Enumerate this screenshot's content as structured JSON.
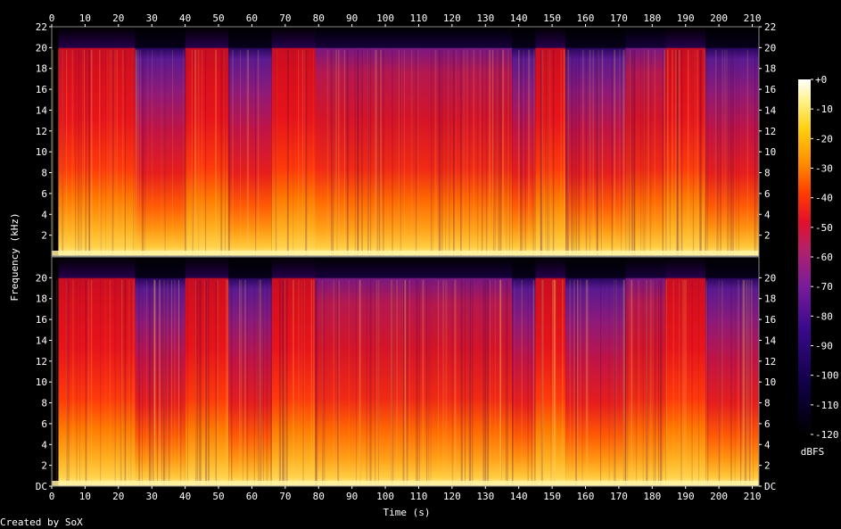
{
  "chart_data": {
    "type": "heatmap",
    "subtype": "spectrogram",
    "channels": 2,
    "xlabel": "Time (s)",
    "ylabel": "Frequency (kHz)",
    "xlim": [
      0,
      212
    ],
    "ylim_khz": [
      0,
      22
    ],
    "x_ticks": [
      "0",
      "10",
      "20",
      "30",
      "40",
      "50",
      "60",
      "70",
      "80",
      "90",
      "100",
      "110",
      "120",
      "130",
      "140",
      "150",
      "160",
      "170",
      "180",
      "190",
      "200",
      "210"
    ],
    "y_ticks_top": [
      "2",
      "4",
      "6",
      "8",
      "10",
      "12",
      "14",
      "16",
      "18",
      "20",
      "22"
    ],
    "y_ticks_bottom": [
      "DC",
      "2",
      "4",
      "6",
      "8",
      "10",
      "12",
      "14",
      "16",
      "18",
      "20"
    ],
    "colorbar": {
      "label": "dBFS",
      "ticks": [
        "+0",
        "-10",
        "-20",
        "-30",
        "-40",
        "-50",
        "-60",
        "-70",
        "-80",
        "-90",
        "-100",
        "-110",
        "-120"
      ],
      "range_db": [
        -120,
        0
      ]
    },
    "lowpass_cutoff_khz": 20,
    "segments": [
      {
        "start": 2,
        "end": 25,
        "intensity": "loud"
      },
      {
        "start": 25,
        "end": 40,
        "intensity": "quiet"
      },
      {
        "start": 40,
        "end": 53,
        "intensity": "loud"
      },
      {
        "start": 53,
        "end": 66,
        "intensity": "quiet"
      },
      {
        "start": 66,
        "end": 79,
        "intensity": "loud"
      },
      {
        "start": 79,
        "end": 138,
        "intensity": "mixed"
      },
      {
        "start": 138,
        "end": 145,
        "intensity": "quiet"
      },
      {
        "start": 145,
        "end": 154,
        "intensity": "loud"
      },
      {
        "start": 154,
        "end": 172,
        "intensity": "quiet"
      },
      {
        "start": 172,
        "end": 184,
        "intensity": "mixed"
      },
      {
        "start": 184,
        "end": 196,
        "intensity": "loud"
      },
      {
        "start": 196,
        "end": 212,
        "intensity": "quiet"
      }
    ],
    "colors": [
      "#000000",
      "#12004a",
      "#3a0a8c",
      "#7a1c9a",
      "#b3206a",
      "#e3102a",
      "#ff3c00",
      "#ff8a00",
      "#ffcf10",
      "#fff38a",
      "#ffffff"
    ]
  },
  "footer": {
    "credit": "Created by SoX"
  }
}
